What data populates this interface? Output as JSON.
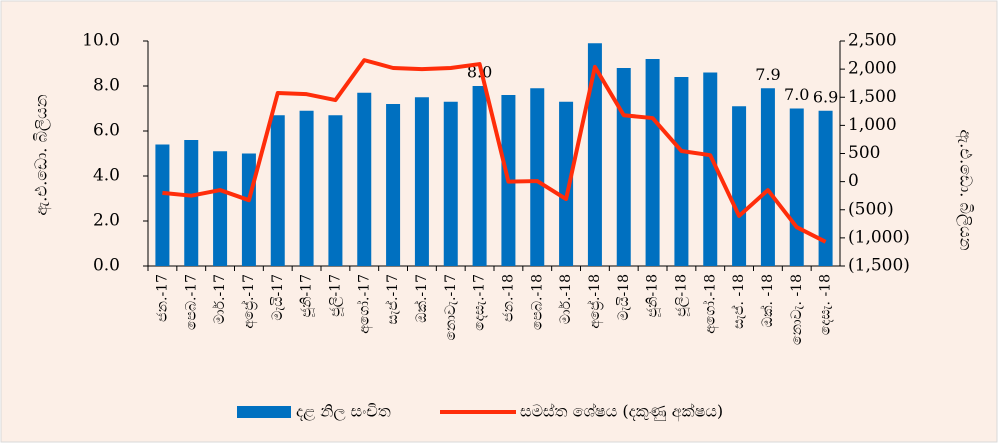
{
  "chart_data": {
    "type": "bar+line",
    "categories": [
      "ජන.-17",
      "පෙබ.-17",
      "මාර්.-17",
      "අප්‍රේ.-17",
      "මැයි-17",
      "ජූනි-17",
      "ජූලි-17",
      "අගෝ.-17",
      "සැප්.-17",
      "ඔක්.-17",
      "නොවැ.-17",
      "දෙසැ.-17",
      "ජන.-18",
      "පෙබ.-18",
      "මාර්.-18",
      "අප්‍රේ.-18",
      "මැයි-18",
      "ජූනි-18",
      "ජූලි-18",
      "අගෝ.-18",
      "සැප්. -18",
      "ඔක්. -18",
      "නොවැ. -18",
      "දෙසැ. -18"
    ],
    "series": [
      {
        "name": "දළ නිල සංචිත",
        "color": "#0070c0",
        "type": "bar",
        "axis": "y",
        "values": [
          5.4,
          5.6,
          5.1,
          5.0,
          6.7,
          6.9,
          6.7,
          7.7,
          7.2,
          7.5,
          7.3,
          8.0,
          7.6,
          7.9,
          7.3,
          9.9,
          8.8,
          9.2,
          8.4,
          8.6,
          7.1,
          7.9,
          7.0,
          6.9
        ],
        "value_labels": [
          null,
          null,
          null,
          null,
          null,
          null,
          null,
          null,
          null,
          null,
          null,
          "8.0",
          null,
          null,
          null,
          null,
          null,
          null,
          null,
          null,
          null,
          "7.9",
          "7.0",
          "6.9"
        ]
      },
      {
        "name": "සමස්ත ශේෂය (දකුණු අක්ෂය)",
        "color": "#ff2d0a",
        "type": "line",
        "axis": "y2",
        "values": [
          -200,
          -250,
          -150,
          -330,
          1575,
          1555,
          1450,
          2160,
          2020,
          2000,
          2020,
          2090,
          0,
          10,
          -310,
          2040,
          1180,
          1130,
          545,
          470,
          -610,
          -150,
          -810,
          -1070
        ]
      }
    ],
    "ylabel": "ඇ.එ.ඩො. බිලියන",
    "y2label": "ඇ.එ.ඩො. බිලියන",
    "ylim": [
      0,
      10
    ],
    "yticks": [
      {
        "value": 0,
        "label": "0.0"
      },
      {
        "value": 2,
        "label": "2.0"
      },
      {
        "value": 4,
        "label": "4.0"
      },
      {
        "value": 6,
        "label": "6.0"
      },
      {
        "value": 8,
        "label": "8.0"
      },
      {
        "value": 10,
        "label": "10.0"
      }
    ],
    "y2lim": [
      -1500,
      2500
    ],
    "y2ticks": [
      {
        "value": -1500,
        "label": "(1,500)"
      },
      {
        "value": -1000,
        "label": "(1,000)"
      },
      {
        "value": -500,
        "label": "(500)"
      },
      0,
      500,
      {
        "value": 1000,
        "label": "1,000"
      },
      {
        "value": 1500,
        "label": "1,500"
      },
      {
        "value": 2000,
        "label": "2,000"
      },
      {
        "value": 2500,
        "label": "2,500"
      }
    ],
    "legend": "bottom",
    "grid": false
  }
}
